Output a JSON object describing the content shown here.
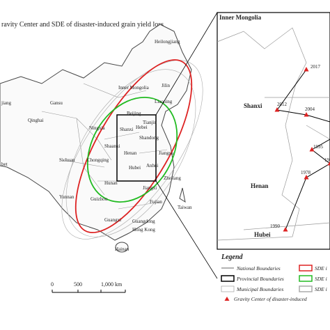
{
  "title": "ravity Center and SDE of disaster-induced grain yield loss",
  "provinces": [
    "Heilongjiang",
    "Jilin",
    "Inner Mongolia",
    "Liaoning",
    "Beijing",
    "Tianjin",
    "Hebei",
    "Shanxi",
    "Shandong",
    "Henan",
    "Shaanxi",
    "Ningxia",
    "Gansu",
    "Qinghai",
    "jiang",
    "bet",
    "Sichuan",
    "Chongqing",
    "Hubei",
    "Anhui",
    "Jiangsu",
    "Zhejiang",
    "Jiangxi",
    "Hunan",
    "Fujian",
    "Taiwan",
    "Yunnan",
    "Guizhou",
    "Guangxi",
    "Guangdong",
    "Hong Kong",
    "Hainan"
  ],
  "inset": {
    "regions": [
      "Inner Mongolia",
      "Shanxi",
      "Henan",
      "Hubei"
    ],
    "years": [
      "2017",
      "2012",
      "2004",
      "1995",
      "19",
      "1978",
      "1990"
    ]
  },
  "scale": [
    "0",
    "500",
    "1,000 km"
  ],
  "legend": {
    "title": "Legend",
    "items": [
      "National Boundaries",
      "Provincial Boundaries",
      "Municipal Boundaries",
      "SDE i",
      "SDE i",
      "SDE i",
      "Gravity Center of disaster-induced"
    ]
  }
}
